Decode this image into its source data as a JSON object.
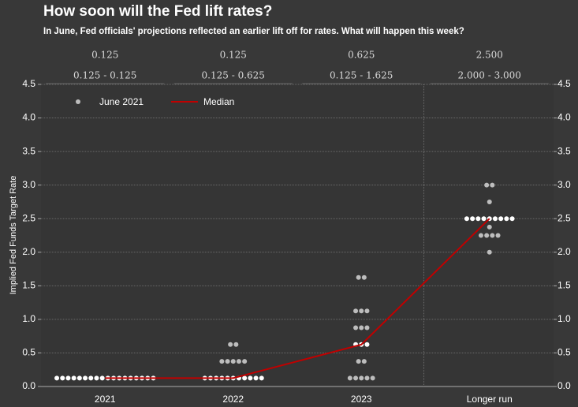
{
  "chart_data": {
    "type": "dot",
    "title": "How soon will the Fed lift rates?",
    "subtitle": "In June, Fed officials' projections reflected an earlier lift off for rates. What will happen this week?",
    "ylabel": "Implied Fed Funds Target Rate",
    "categories": [
      "2021",
      "2022",
      "2023",
      "Longer run"
    ],
    "ranges": [
      "0.125 - 0.125",
      "0.125 - 0.625",
      "0.125 - 1.625",
      "2.000 - 3.000"
    ],
    "series": [
      {
        "name": "June 2021",
        "color": "#bdbdbd",
        "values": [
          [
            0.125,
            0.125,
            0.125,
            0.125,
            0.125,
            0.125,
            0.125,
            0.125,
            0.125,
            0.125,
            0.125,
            0.125,
            0.125,
            0.125,
            0.125,
            0.125,
            0.125,
            0.125
          ],
          [
            0.625,
            0.625,
            0.375,
            0.375,
            0.375,
            0.375,
            0.375,
            0.125,
            0.125,
            0.125,
            0.125,
            0.125,
            0.125,
            0.125,
            0.125,
            0.125,
            0.125,
            0.125
          ],
          [
            1.625,
            1.625,
            1.125,
            1.125,
            1.125,
            0.875,
            0.875,
            0.875,
            0.625,
            0.625,
            0.625,
            0.375,
            0.375,
            0.125,
            0.125,
            0.125,
            0.125,
            0.125
          ],
          [
            3.0,
            3.0,
            2.75,
            2.5,
            2.5,
            2.5,
            2.5,
            2.5,
            2.5,
            2.5,
            2.5,
            2.5,
            2.375,
            2.25,
            2.25,
            2.25,
            2.25,
            2.0
          ]
        ]
      },
      {
        "name": "Median",
        "color": "#c00000",
        "values": [
          0.125,
          0.125,
          0.625,
          2.5
        ],
        "value_labels": [
          "0.125",
          "0.125",
          "0.625",
          "2.500"
        ]
      }
    ],
    "ylim": [
      0,
      4.5
    ],
    "yticks": [
      {
        "value": 0,
        "label": "0.0"
      },
      0.5,
      {
        "value": 1,
        "label": "1.0"
      },
      1.5,
      {
        "value": 2,
        "label": "2.0"
      },
      2.5,
      {
        "value": 3,
        "label": "3.0"
      },
      3.5,
      {
        "value": 4,
        "label": "4.0"
      },
      4.5
    ],
    "y2lim": [
      0,
      4.5
    ],
    "y2ticks": [
      {
        "value": 0,
        "label": "0.0"
      },
      0.5,
      {
        "value": 1,
        "label": "1.0"
      },
      1.5,
      {
        "value": 2,
        "label": "2.0"
      },
      2.5,
      {
        "value": 3,
        "label": "3.0"
      },
      3.5,
      {
        "value": 4,
        "label": "4.0"
      },
      4.5
    ],
    "grid": true
  }
}
